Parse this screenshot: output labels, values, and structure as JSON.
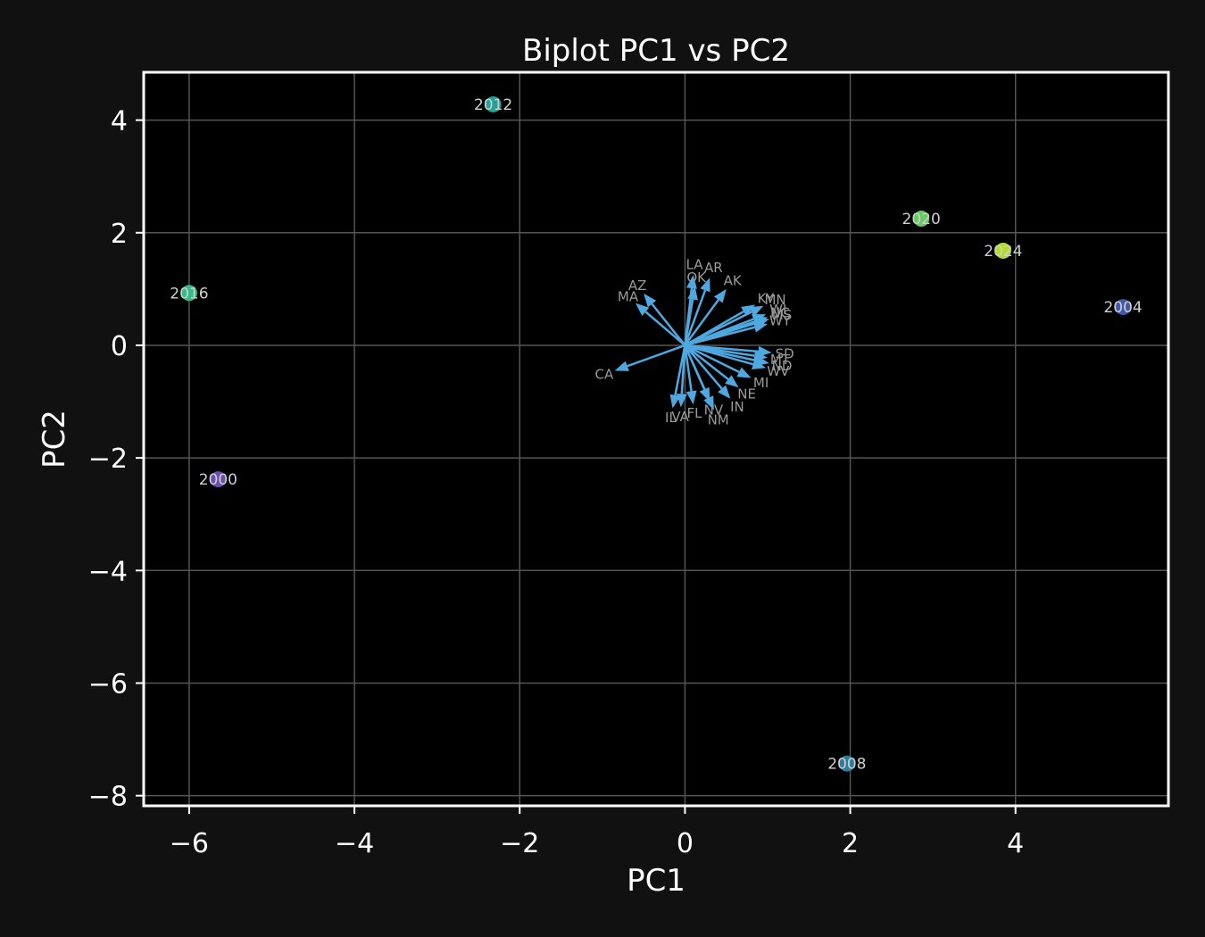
{
  "chart_data": {
    "type": "scatter",
    "title": "Biplot PC1 vs PC2",
    "xlabel": "PC1",
    "ylabel": "PC2",
    "xlim": [
      -6.55,
      5.85
    ],
    "ylim": [
      -8.18,
      4.85
    ],
    "xticks": [
      -6,
      -4,
      -2,
      0,
      2,
      4
    ],
    "yticks": [
      -8,
      -6,
      -4,
      -2,
      0,
      2,
      4
    ],
    "grid": true,
    "points": [
      {
        "label": "2000",
        "x": -5.65,
        "y": -2.38,
        "color": "#6a4fb0"
      },
      {
        "label": "2004",
        "x": 5.3,
        "y": 0.68,
        "color": "#4159a8"
      },
      {
        "label": "2008",
        "x": 1.96,
        "y": -7.43,
        "color": "#2d7e9e"
      },
      {
        "label": "2012",
        "x": -2.32,
        "y": 4.28,
        "color": "#23a29a"
      },
      {
        "label": "2016",
        "x": -6.0,
        "y": 0.93,
        "color": "#38b98a"
      },
      {
        "label": "2020",
        "x": 2.86,
        "y": 2.25,
        "color": "#64cc61"
      },
      {
        "label": "2024",
        "x": 3.85,
        "y": 1.68,
        "color": "#b1dd2e"
      }
    ],
    "loadings": [
      {
        "label": "AZ",
        "x": -0.5,
        "y": 0.92
      },
      {
        "label": "MA",
        "x": -0.6,
        "y": 0.75
      },
      {
        "label": "CA",
        "x": -0.85,
        "y": -0.45
      },
      {
        "label": "LA",
        "x": 0.1,
        "y": 1.25
      },
      {
        "label": "OK",
        "x": 0.12,
        "y": 1.05
      },
      {
        "label": "AR",
        "x": 0.3,
        "y": 1.2
      },
      {
        "label": "AK",
        "x": 0.5,
        "y": 1.0
      },
      {
        "label": "KY",
        "x": 0.85,
        "y": 0.72
      },
      {
        "label": "MN",
        "x": 0.95,
        "y": 0.7
      },
      {
        "label": "WI",
        "x": 0.98,
        "y": 0.55
      },
      {
        "label": "NC",
        "x": 1.0,
        "y": 0.5
      },
      {
        "label": "MS",
        "x": 1.02,
        "y": 0.47
      },
      {
        "label": "WY",
        "x": 1.0,
        "y": 0.38
      },
      {
        "label": "SD",
        "x": 1.05,
        "y": -0.13
      },
      {
        "label": "MT",
        "x": 1.0,
        "y": -0.22
      },
      {
        "label": "ND",
        "x": 1.02,
        "y": -0.32
      },
      {
        "label": "WV",
        "x": 0.98,
        "y": -0.4
      },
      {
        "label": "MI",
        "x": 0.8,
        "y": -0.58
      },
      {
        "label": "NE",
        "x": 0.65,
        "y": -0.75
      },
      {
        "label": "IN",
        "x": 0.55,
        "y": -0.95
      },
      {
        "label": "NV",
        "x": 0.3,
        "y": -1.0
      },
      {
        "label": "NM",
        "x": 0.35,
        "y": -1.15
      },
      {
        "label": "FL",
        "x": 0.1,
        "y": -1.05
      },
      {
        "label": "VA",
        "x": -0.05,
        "y": -1.1
      },
      {
        "label": "IL",
        "x": -0.15,
        "y": -1.12
      }
    ],
    "colors": {
      "background": "#111111",
      "plot_background": "#000000",
      "grid": "#555555",
      "arrow": "#4fa8e0",
      "frame": "#ffffff"
    }
  }
}
